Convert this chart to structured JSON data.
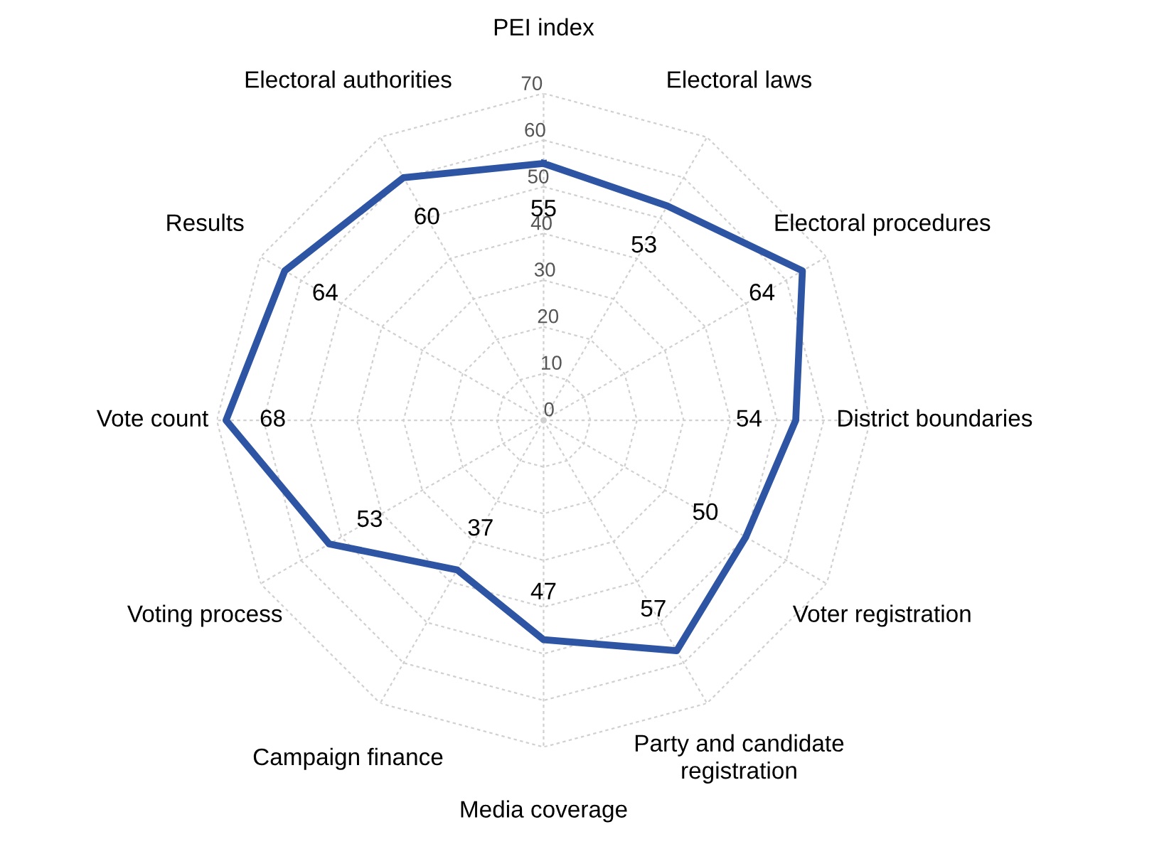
{
  "chart_data": {
    "type": "radar",
    "categories": [
      "PEI index",
      "Electoral laws",
      "Electoral procedures",
      "District boundaries",
      "Voter registration",
      "Party and candidate\nregistration",
      "Media coverage",
      "Campaign finance",
      "Voting process",
      "Vote count",
      "Results",
      "Electoral authorities"
    ],
    "series": [
      {
        "color": "#2e55a4",
        "values": [
          55,
          53,
          64,
          54,
          50,
          57,
          47,
          37,
          53,
          68,
          64,
          60
        ]
      }
    ],
    "ylim": [
      0,
      70
    ],
    "yticks": [
      0,
      10,
      20,
      30,
      40,
      50,
      60,
      70
    ],
    "grid": true,
    "data_labels": true,
    "marker": "none",
    "line_style": "solid"
  }
}
